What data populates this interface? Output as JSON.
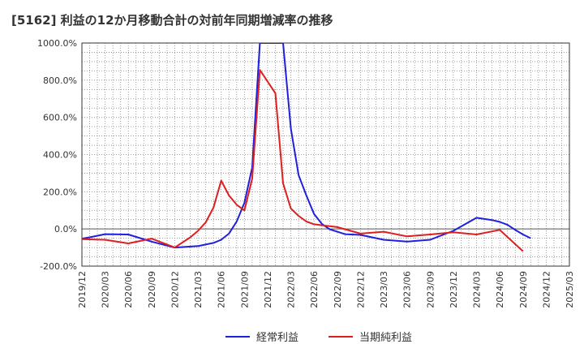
{
  "chart_data": {
    "type": "line",
    "title": "[5162]  利益の12か月移動合計の対前年同期増減率の推移",
    "xlabel": "",
    "ylabel": "",
    "ylim": [
      -200,
      1000
    ],
    "yticks": [
      -200,
      0,
      200,
      400,
      600,
      800,
      1000
    ],
    "ytick_labels": [
      "-200.0%",
      "0.0%",
      "200.0%",
      "400.0%",
      "600.0%",
      "800.0%",
      "1000.0%"
    ],
    "x_start": "2019-12",
    "x_end": "2025-03",
    "xtick_labels": [
      "2019/12",
      "2020/03",
      "2020/06",
      "2020/09",
      "2020/12",
      "2021/03",
      "2021/06",
      "2021/09",
      "2021/12",
      "2022/03",
      "2022/06",
      "2022/09",
      "2022/12",
      "2023/03",
      "2023/06",
      "2023/09",
      "2023/12",
      "2024/03",
      "2024/06",
      "2024/09",
      "2024/12",
      "2025/03"
    ],
    "grid": true,
    "legend_position": "bottom-center",
    "series": [
      {
        "name": "経常利益",
        "color": "#1f1fdd",
        "x": [
          0,
          1,
          3,
          6,
          9,
          12,
          15,
          17,
          18,
          19,
          20,
          21,
          22,
          23,
          26,
          27,
          28,
          29,
          30,
          31,
          32,
          33,
          34,
          36,
          39,
          42,
          45,
          48,
          51,
          53,
          54,
          55,
          56,
          57,
          58,
          59,
          60
        ],
        "values": [
          -52,
          -45,
          -28,
          -30,
          -68,
          -100,
          -92,
          -75,
          -58,
          -25,
          40,
          140,
          330,
          1000,
          1000,
          540,
          290,
          180,
          80,
          28,
          -2,
          -15,
          -28,
          -32,
          -58,
          -68,
          -58,
          -10,
          60,
          48,
          38,
          22,
          -5,
          -30,
          -50,
          null,
          null
        ]
      },
      {
        "name": "当期純利益",
        "color": "#dd1f1f",
        "x": [
          0,
          3,
          6,
          9,
          12,
          14,
          15,
          16,
          17,
          18,
          19,
          20,
          21,
          22,
          23,
          25,
          26,
          27,
          28,
          29,
          30,
          31,
          33,
          36,
          39,
          42,
          45,
          48,
          51,
          54,
          57
        ],
        "values": [
          -55,
          -58,
          -78,
          -52,
          -100,
          -45,
          -10,
          35,
          115,
          260,
          180,
          130,
          100,
          270,
          855,
          730,
          245,
          110,
          70,
          40,
          25,
          20,
          10,
          -25,
          -15,
          -40,
          -30,
          -18,
          -30,
          -5,
          -120
        ]
      }
    ]
  }
}
